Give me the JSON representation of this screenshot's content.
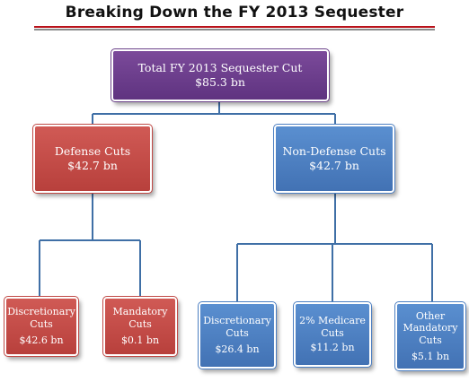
{
  "title": "Breaking Down the FY 2013 Sequester",
  "colors": {
    "total": "#6b4189",
    "defense": "#c0504d",
    "non_defense": "#4f81bd",
    "connector": "#3f6fa6",
    "title_rule": "#b9121b"
  },
  "nodes": {
    "total": {
      "label": "Total FY 2013 Sequester Cut",
      "value": "$85.3 bn"
    },
    "defense": {
      "label": "Defense Cuts",
      "value": "$42.7 bn"
    },
    "non_defense": {
      "label": "Non-Defense Cuts",
      "value": "$42.7 bn"
    },
    "defense_discretionary": {
      "label": "Discretionary Cuts",
      "value": "$42.6 bn"
    },
    "defense_mandatory": {
      "label": "Mandatory Cuts",
      "value": "$0.1 bn"
    },
    "nondefense_discretionary": {
      "label": "Discretionary Cuts",
      "value": "$26.4 bn"
    },
    "nondefense_medicare": {
      "label": "2% Medicare Cuts",
      "value": "$11.2 bn"
    },
    "nondefense_other": {
      "label": "Other Mandatory Cuts",
      "value": "$5.1 bn"
    }
  }
}
